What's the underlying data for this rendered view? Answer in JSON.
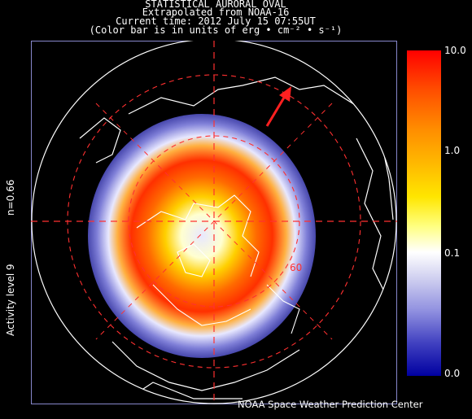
{
  "header": {
    "line1": "STATISTICAL AURORAL OVAL",
    "line2": "Extrapolated from NOAA-16",
    "line3": "Current time: 2012 July 15 07:55UT",
    "line4": "(Color bar is in units of erg • cm⁻² • s⁻¹)"
  },
  "side_labels": {
    "n_value": "n=0.66",
    "activity": "Activity level 9"
  },
  "map": {
    "latitude_label": "60"
  },
  "colorbar": {
    "ticks": [
      "10.0",
      "1.0",
      "0.1",
      "0.0"
    ],
    "colors": {
      "max": "#ff0000",
      "mid": "#ffff00",
      "low": "#ffffff",
      "min": "#0000a0"
    }
  },
  "credit": "NOAA Space Weather Prediction Center"
}
